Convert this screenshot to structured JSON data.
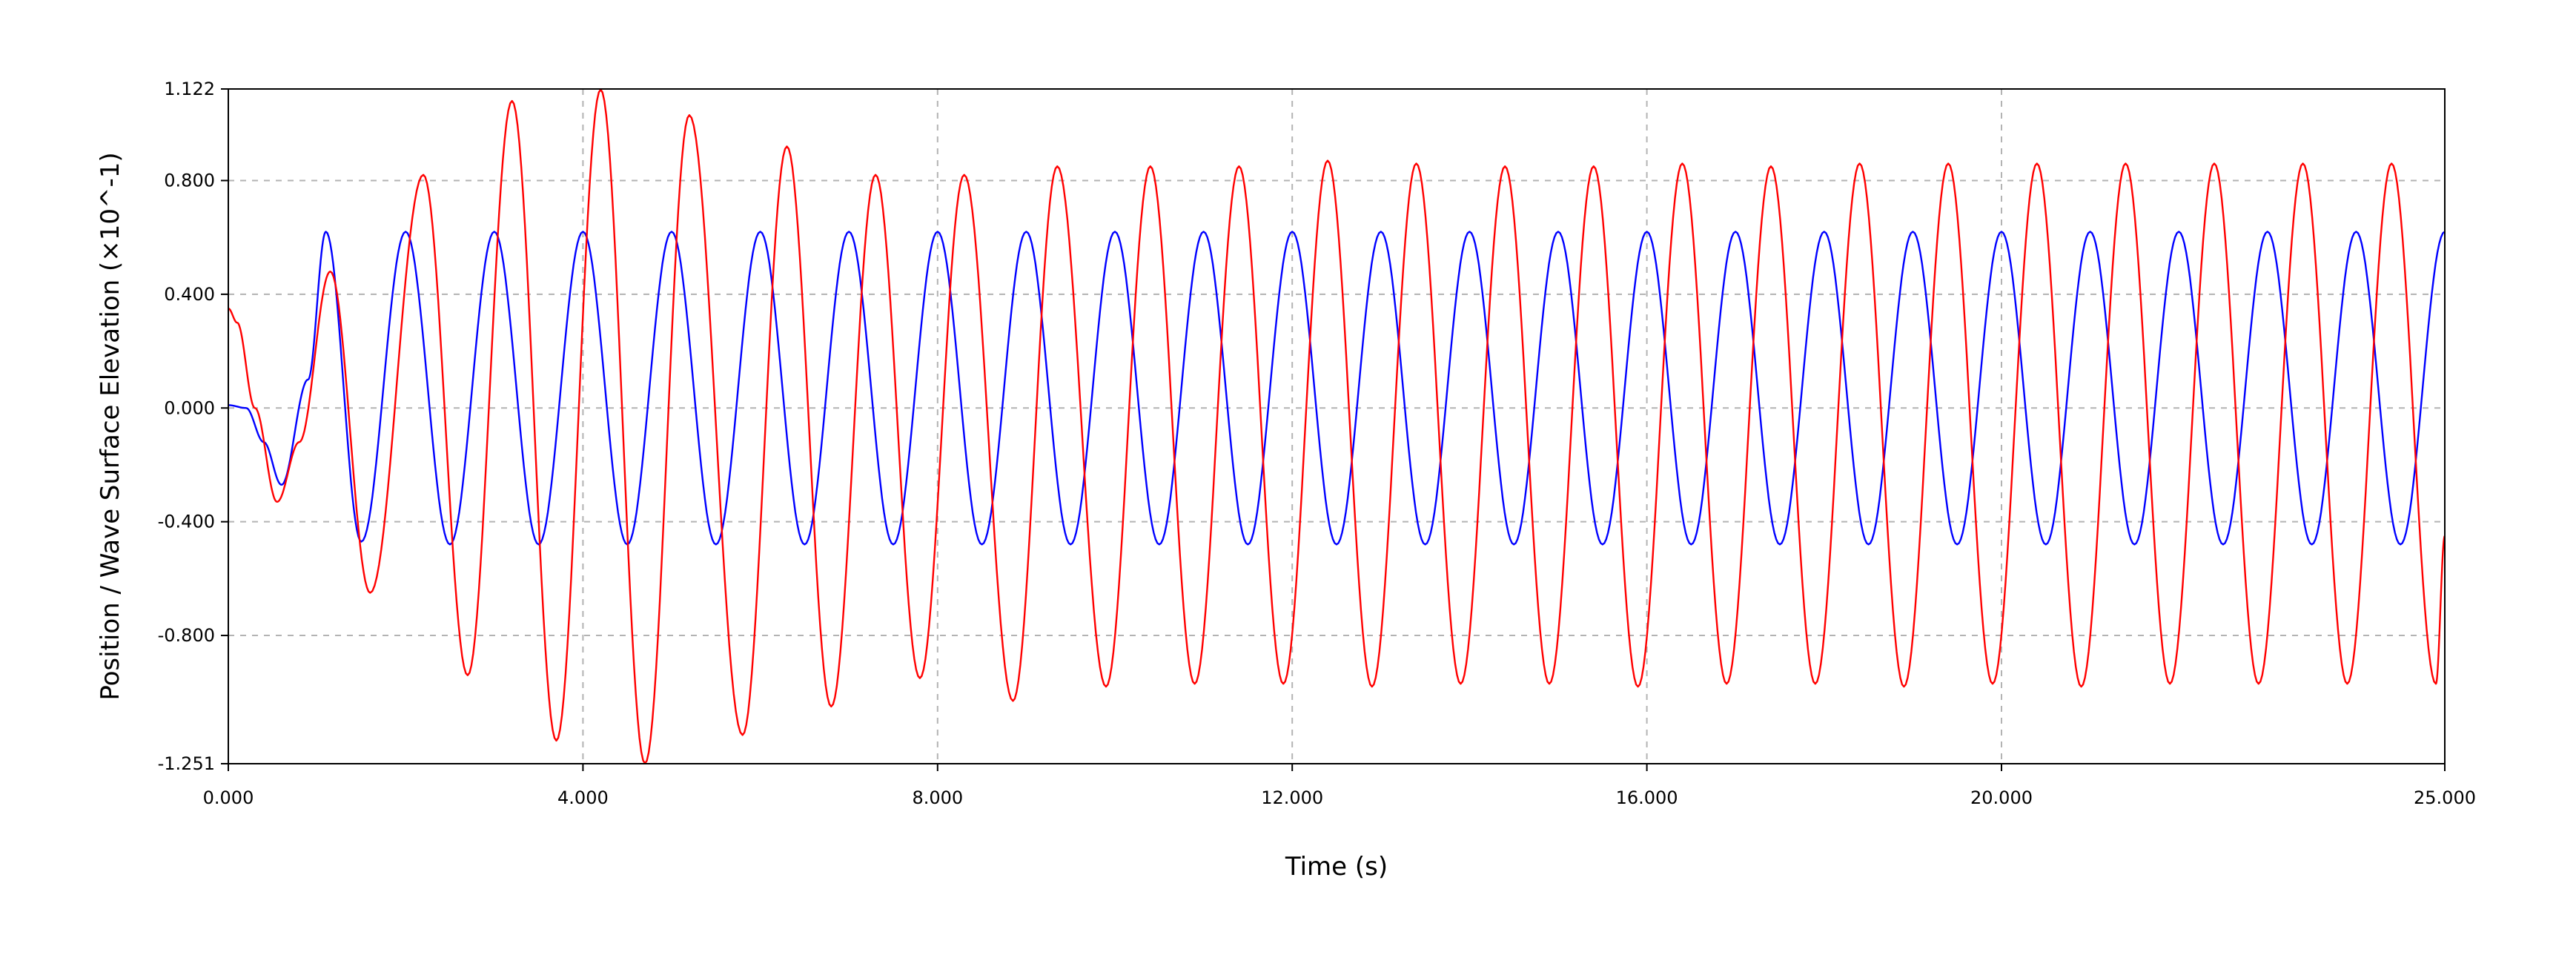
{
  "chart_data": {
    "type": "line",
    "xlabel": "Time (s)",
    "ylabel": "Position / Wave Surface Elevation (×10^-1)",
    "xlim": [
      0,
      25
    ],
    "ylim": [
      -1.251,
      1.122
    ],
    "x_ticks": [
      "0.000",
      "4.000",
      "8.000",
      "12.000",
      "16.000",
      "20.000",
      "25.000"
    ],
    "x_tick_values": [
      0,
      4,
      8,
      12,
      16,
      20,
      25
    ],
    "y_ticks": [
      "1.122",
      "0.800",
      "0.400",
      "0.000",
      "-0.400",
      "-0.800",
      "-1.251"
    ],
    "y_tick_values": [
      1.122,
      0.8,
      0.4,
      0.0,
      -0.4,
      -0.8,
      -1.251
    ],
    "grid": true,
    "grid_x": [
      4,
      8,
      12,
      16,
      20
    ],
    "grid_y": [
      0.8,
      0.4,
      0.0,
      -0.4,
      -0.8
    ],
    "series": [
      {
        "color": "#0000ff",
        "period_s": 0.98,
        "x": [
          0,
          0.2,
          0.4,
          0.6,
          0.9,
          1.1,
          1.5,
          2.0,
          2.5,
          3.0,
          3.5,
          4.0,
          4.5,
          5.0,
          5.5,
          6.0,
          6.5,
          7.0,
          7.5,
          8.0,
          8.5,
          9.0,
          9.5,
          10.0,
          10.5,
          11.0,
          11.5,
          12.0,
          12.5,
          13.0,
          13.5,
          14.0,
          14.5,
          15.0,
          15.5,
          16.0,
          16.5,
          17.0,
          17.5,
          18.0,
          18.5,
          19.0,
          19.5,
          20.0,
          20.5,
          21.0,
          21.5,
          22.0,
          22.5,
          23.0,
          23.5,
          24.0,
          24.5,
          25.0
        ],
        "y": [
          0.01,
          0.0,
          -0.12,
          -0.27,
          0.1,
          0.62,
          -0.47,
          0.62,
          -0.48,
          0.62,
          -0.48,
          0.62,
          -0.48,
          0.62,
          -0.48,
          0.62,
          -0.48,
          0.62,
          -0.48,
          0.62,
          -0.48,
          0.62,
          -0.48,
          0.62,
          -0.48,
          0.62,
          -0.48,
          0.62,
          -0.48,
          0.62,
          -0.48,
          0.62,
          -0.48,
          0.62,
          -0.48,
          0.62,
          -0.48,
          0.62,
          -0.48,
          0.62,
          -0.48,
          0.62,
          -0.48,
          0.62,
          -0.48,
          0.62,
          -0.48,
          0.62,
          -0.48,
          0.62,
          -0.48,
          0.62,
          -0.48,
          0.62
        ]
      },
      {
        "color": "#ff0000",
        "period_s": 1.0,
        "x": [
          0,
          0.1,
          0.3,
          0.55,
          0.8,
          1.15,
          1.6,
          2.2,
          2.7,
          3.2,
          3.7,
          4.2,
          4.7,
          5.2,
          5.8,
          6.3,
          6.8,
          7.3,
          7.8,
          8.3,
          8.85,
          9.35,
          9.9,
          10.4,
          10.9,
          11.4,
          11.9,
          12.4,
          12.9,
          13.4,
          13.9,
          14.4,
          14.9,
          15.4,
          15.9,
          16.4,
          16.9,
          17.4,
          17.9,
          18.4,
          18.9,
          19.4,
          19.9,
          20.4,
          20.9,
          21.4,
          21.9,
          22.4,
          22.9,
          23.4,
          23.9,
          24.4,
          24.9,
          25.0
        ],
        "y": [
          0.35,
          0.3,
          0.0,
          -0.33,
          -0.12,
          0.48,
          -0.65,
          0.82,
          -0.94,
          1.08,
          -1.17,
          1.12,
          -1.25,
          1.03,
          -1.15,
          0.92,
          -1.05,
          0.82,
          -0.95,
          0.82,
          -1.03,
          0.85,
          -0.98,
          0.85,
          -0.97,
          0.85,
          -0.97,
          0.87,
          -0.98,
          0.86,
          -0.97,
          0.85,
          -0.97,
          0.85,
          -0.98,
          0.86,
          -0.97,
          0.85,
          -0.97,
          0.86,
          -0.98,
          0.86,
          -0.97,
          0.86,
          -0.98,
          0.86,
          -0.97,
          0.86,
          -0.97,
          0.86,
          -0.97,
          0.86,
          -0.97,
          -0.45
        ]
      }
    ]
  }
}
